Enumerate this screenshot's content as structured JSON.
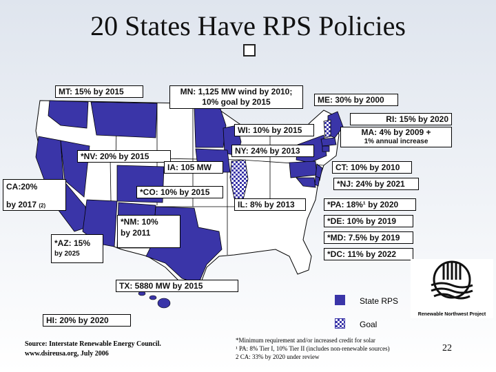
{
  "title": "20 States Have RPS Policies",
  "colors": {
    "rps": "#3a35a8",
    "goal_check": "#3a35a8",
    "non_rps": "#ffffff",
    "border": "#000000"
  },
  "labels": {
    "mt": "MT: 15% by 2015",
    "mn": "MN: 1,125 MW wind by 2010;",
    "mn2": "10% goal by 2015",
    "me": "ME: 30% by 2000",
    "ri": "RI: 15% by 2020",
    "wi": "WI: 10% by 2015",
    "ma": "MA: 4% by 2009 +",
    "ma2": "1% annual increase",
    "ny": "NY: 24% by 2013",
    "nv": "*NV: 20% by 2015",
    "ia": "IA: 105 MW",
    "ct": "CT: 10% by 2010",
    "ca": "CA:20%",
    "ca2": "by 2017",
    "ca_note": "(2)",
    "co": "*CO: 10% by 2015",
    "nj": "*NJ: 24% by 2021",
    "il": "IL: 8% by 2013",
    "pa": "*PA: 18%¹ by 2020",
    "nm": "*NM: 10%",
    "nm2": "by 2011",
    "de": "*DE: 10% by 2019",
    "az": "*AZ: 15%",
    "az2": "by 2025",
    "md": "*MD: 7.5% by 2019",
    "dc": "*DC: 11% by 2022",
    "tx": "TX: 5880 MW by 2015",
    "hi": "HI: 20% by 2020"
  },
  "legend": {
    "rps": "State RPS",
    "goal": "Goal"
  },
  "logo": {
    "text": "Renewable Northwest Project"
  },
  "source": {
    "line1": "Source: Interstate Renewable Energy Council.",
    "line2": "www.dsireusa.org, July 2006"
  },
  "notes": {
    "n1": "*Minimum requirement and/or increased credit for solar",
    "n2": "¹ PA: 8% Tier I, 10% Tier II (includes non-renewable sources)",
    "n3": "2 CA: 33% by 2020 under review"
  },
  "page_number": "22"
}
